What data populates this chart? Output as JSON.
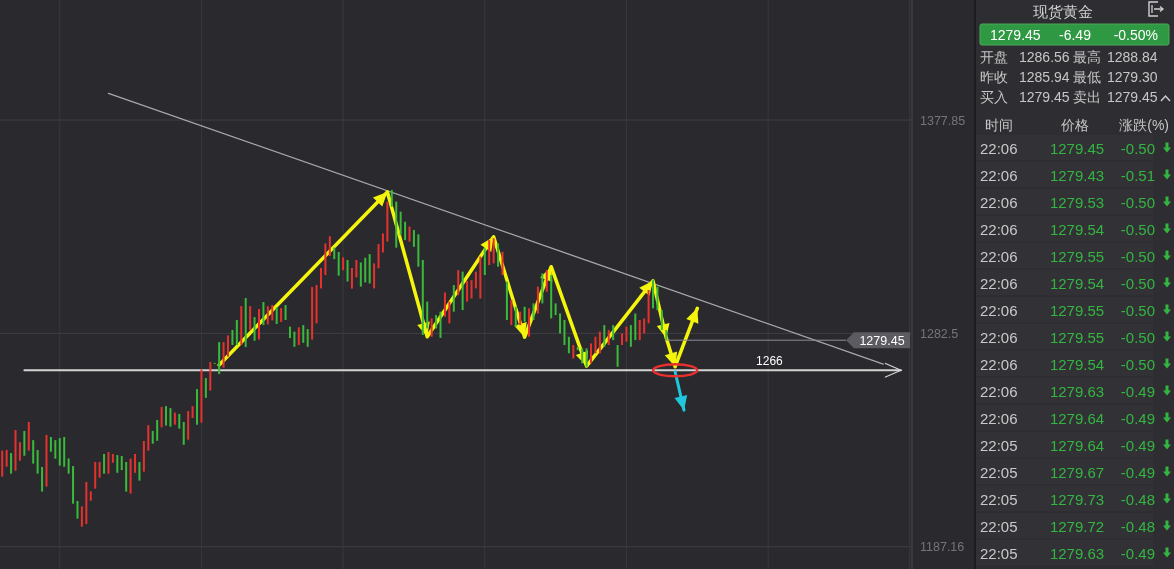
{
  "chart_data": [
    {
      "type": "bar",
      "categories": [
        null,
        null,
        null,
        null,
        null,
        null,
        null,
        null,
        null,
        null,
        null,
        null,
        null,
        null,
        null,
        null,
        null,
        null,
        null,
        null,
        null,
        null,
        null,
        null,
        null,
        null,
        null,
        null,
        null,
        null,
        null,
        null,
        null,
        null,
        null,
        null,
        null,
        null,
        null,
        null,
        null,
        null,
        null,
        null,
        null,
        null,
        null,
        null,
        null,
        null,
        null,
        null,
        null,
        null,
        null,
        null,
        null,
        null,
        null,
        null,
        null,
        null,
        null,
        null,
        null,
        null,
        null,
        null,
        null,
        null,
        null,
        null,
        null,
        null,
        null,
        null,
        null,
        null,
        null,
        null,
        null,
        null,
        null,
        null,
        null,
        null,
        null,
        null,
        null,
        null,
        null,
        null,
        null,
        null,
        null,
        null,
        null,
        null,
        null,
        null,
        null,
        null,
        null,
        null,
        null,
        null,
        null,
        null,
        null,
        null,
        null,
        null,
        null,
        null,
        null,
        null,
        null,
        null,
        null,
        null,
        null,
        null,
        null,
        null,
        null,
        null,
        null,
        null,
        null,
        null,
        null,
        null,
        null,
        null,
        null,
        null,
        null,
        null,
        null,
        null,
        null,
        null,
        null,
        null,
        null,
        null,
        null,
        null,
        null,
        null,
        null,
        null,
        null,
        null,
        null,
        null,
        null,
        null,
        null,
        null,
        null,
        null,
        null,
        null,
        null,
        null,
        null,
        null,
        null,
        null,
        null,
        null,
        null,
        null,
        null,
        null,
        null,
        null,
        null,
        null,
        null,
        null,
        null,
        null,
        null,
        null,
        null,
        null,
        null,
        null,
        null,
        null,
        null,
        null,
        null,
        null,
        null,
        null,
        null,
        null,
        null,
        null,
        null,
        null,
        null,
        null
      ],
      "base": [
        1218.5,
        1222.9,
        1219.8,
        1221.1,
        1225.6,
        1227.8,
        1230.1,
        1224.3,
        1219.8,
        1211.8,
        1214.0,
        1229.6,
        1226.5,
        1223.4,
        1222.9,
        1219.8,
        1206.4,
        1199.7,
        1196.1,
        1197.3,
        1207.7,
        1213.1,
        1218.0,
        1219.8,
        1219.8,
        1224.7,
        1220.2,
        1221.4,
        1211.8,
        1210.9,
        1220.2,
        1216.7,
        1220.7,
        1230.1,
        1233.2,
        1234.5,
        1240.5,
        1241.3,
        1240.8,
        1241.7,
        1239.9,
        1232.7,
        1235.0,
        1244.7,
        1241.7,
        1242.6,
        1253.7,
        1256.9,
        1269.0,
        1264.3,
        1267.2,
        1272.1,
        1277.3,
        1277.3,
        1277.4,
        1276.4,
        1284.0,
        1279.2,
        1279.8,
        1286.2,
        1286.5,
        1288.3,
        1286.7,
        1287.6,
        1288.5,
        1280.4,
        1276.5,
        1277.3,
        1278.3,
        1276.5,
        1279.7,
        1287.0,
        1302.6,
        1308.6,
        1317.1,
        1315.7,
        1308.3,
        1310.7,
        1305.7,
        1302.5,
        1307.5,
        1303.4,
        1305.3,
        1304.8,
        1302.6,
        1311.6,
        1318.7,
        1323.5,
        1339.1,
        1320.8,
        1326.4,
        1324.2,
        1323.5,
        1321.2,
        1312.3,
        1281.8,
        1284.7,
        1281.0,
        1284.7,
        1280.5,
        1290.0,
        1287.0,
        1292.2,
        1299.6,
        1292.9,
        1296.7,
        1298.1,
        1302.6,
        1298.1,
        1308.6,
        1313.0,
        1313.8,
        1312.3,
        1308.6,
        1288.5,
        1286.2,
        1285.5,
        1286.2,
        1287.7,
        1281.0,
        1288.5,
        1291.4,
        1295.9,
        1301.1,
        1289.2,
        1290.7,
        1282.5,
        1277.3,
        1273.6,
        1271.3,
        1275.0,
        1269.1,
        1267.6,
        1269.1,
        1273.6,
        1273.6,
        1276.5,
        1277.3,
        1279.5,
        1267.6,
        1277.3,
        1278.8,
        1276.5,
        1279.5,
        1279.5,
        1282.5,
        1287.0,
        1293.7,
        1292.9,
        1284.0,
        1279.5,
        null,
        null,
        null,
        null,
        null,
        null,
        null,
        null,
        null,
        null,
        null,
        null,
        null,
        null,
        null,
        null,
        null,
        null,
        null,
        null,
        null,
        null,
        null,
        null,
        null,
        null,
        null,
        null,
        null,
        null,
        null,
        null,
        null,
        null,
        null,
        null,
        null,
        null,
        null,
        null,
        null,
        null,
        null,
        null,
        null,
        null,
        null,
        null,
        null,
        null,
        null,
        null,
        null,
        null,
        null
      ],
      "values": [
        11.6,
        7.5,
        9.2,
        18.2,
        8.3,
        11.1,
        12.8,
        10.5,
        10.6,
        11.0,
        23.1,
        6.6,
        8.3,
        12.3,
        13.3,
        6.8,
        16.8,
        7.9,
        9.1,
        18.8,
        4.2,
        11.9,
        7.0,
        8.8,
        9.7,
        3.9,
        7.9,
        6.3,
        13.2,
        15.6,
        8.4,
        8.3,
        13.7,
        11.4,
        5.7,
        9.3,
        9.1,
        8.7,
        8.3,
        5.4,
        6.6,
        10.2,
        12.8,
        5.3,
        15.9,
        23.8,
        8.8,
        12.8,
        0.3,
        14.3,
        11.4,
        9.5,
        6.7,
        11.2,
        17.3,
        21.9,
        10.7,
        10.6,
        13.6,
        10.3,
        8.2,
        6.9,
        7.4,
        6.2,
        6.7,
        5.1,
        6.8,
        7.9,
        7.9,
        7.9,
        23.5,
        17.1,
        9.1,
        14.1,
        8.8,
        5.2,
        10.6,
        5.8,
        9.6,
        9.2,
        7.8,
        10.8,
        11.0,
        13.1,
        11.2,
        10.8,
        8.5,
        17.9,
        7.5,
        20.6,
        10.5,
        8.2,
        6.7,
        7.5,
        14.5,
        33.5,
        12.0,
        8.2,
        6.0,
        11.7,
        10.8,
        9.7,
        11.9,
        11.2,
        17.2,
        9.2,
        8.2,
        7.5,
        18.7,
        11.9,
        11.2,
        11.2,
        10.4,
        10.4,
        17.1,
        11.2,
        8.9,
        6.0,
        6.7,
        12.7,
        7.4,
        12.0,
        13.4,
        9.7,
        19.4,
        5.2,
        8.9,
        11.2,
        7.4,
        6.0,
        1.5,
        6.7,
        8.2,
        8.9,
        7.4,
        9.7,
        9.7,
        6.7,
        6.7,
        9.7,
        5.2,
        6.7,
        9.7,
        11.9,
        9.0,
        6.7,
        14.9,
        12.6,
        10.5,
        8.9,
        4.5,
        null,
        null,
        null,
        null,
        null,
        null,
        null,
        null,
        null,
        null,
        null,
        null,
        null,
        null,
        null,
        null,
        null,
        null,
        null,
        null,
        null,
        null,
        null,
        null,
        null,
        null,
        null,
        null,
        null,
        null,
        null,
        null,
        null,
        null,
        null,
        null,
        null,
        null,
        null,
        null,
        null,
        null,
        null,
        null,
        null,
        null,
        null,
        null,
        null,
        null,
        null,
        null,
        null,
        null,
        null
      ],
      "colors": [
        "#e5322f",
        "#e5322f",
        "#3ab93a",
        "#e5322f",
        "#e5322f",
        "#3ab93a",
        "#e5322f",
        "#3ab93a",
        "#3ab93a",
        "#3ab93a",
        "#e5322f",
        "#3ab93a",
        "#3ab93a",
        "#3ab93a",
        "#3ab93a",
        "#3ab93a",
        "#3ab93a",
        "#3ab93a",
        "#e5322f",
        "#e5322f",
        "#e5322f",
        "#e5322f",
        "#e5322f",
        "#3ab93a",
        "#e5322f",
        "#e5322f",
        "#3ab93a",
        "#3ab93a",
        "#3ab93a",
        "#e5322f",
        "#e5322f",
        "#3ab93a",
        "#e5322f",
        "#e5322f",
        "#3ab93a",
        "#3ab93a",
        "#e5322f",
        "#3ab93a",
        "#3ab93a",
        "#e5322f",
        "#3ab93a",
        "#3ab93a",
        "#e5322f",
        "#e5322f",
        "#3ab93a",
        "#e5322f",
        "#3ab93a",
        "#e5322f",
        "#3ab93a",
        "#3ab93a",
        "#e5322f",
        "#e5322f",
        "#3ab93a",
        "#3ab93a",
        "#e5322f",
        "#3ab93a",
        "#e5322f",
        "#3ab93a",
        "#e5322f",
        "#3ab93a",
        "#e5322f",
        "#e5322f",
        "#3ab93a",
        "#e5322f",
        "#3ab93a",
        "#3ab93a",
        "#3ab93a",
        "#e5322f",
        "#3ab93a",
        "#3ab93a",
        "#e5322f",
        "#e5322f",
        "#e5322f",
        "#e5322f",
        "#e5322f",
        "#3ab93a",
        "#3ab93a",
        "#e5322f",
        "#3ab93a",
        "#e5322f",
        "#e5322f",
        "#3ab93a",
        "#3ab93a",
        "#3ab93a",
        "#e5322f",
        "#e5322f",
        "#e5322f",
        "#e5322f",
        "#3ab93a",
        "#3ab93a",
        "#3ab93a",
        "#3ab93a",
        "#e5322f",
        "#3ab93a",
        "#3ab93a",
        "#3ab93a",
        "#3ab93a",
        "#e5322f",
        "#3ab93a",
        "#3ab93a",
        "#e5322f",
        "#e5322f",
        "#3ab93a",
        "#e5322f",
        "#3ab93a",
        "#e5322f",
        "#e5322f",
        "#e5322f",
        "#e5322f",
        "#3ab93a",
        "#e5322f",
        "#e5322f",
        "#3ab93a",
        "#e5322f",
        "#3ab93a",
        "#e5322f",
        "#3ab93a",
        "#e5322f",
        "#3ab93a",
        "#e5322f",
        "#3ab93a",
        "#e5322f",
        "#3ab93a",
        "#e5322f",
        "#3ab93a",
        "#3ab93a",
        "#3ab93a",
        "#3ab93a",
        "#3ab93a",
        "#e5322f",
        "#3ab93a",
        "#3ab93a",
        "#3ab93a",
        "#e5322f",
        "#e5322f",
        "#e5322f",
        "#3ab93a",
        "#e5322f",
        "#3ab93a",
        "#3ab93a",
        "#e5322f",
        "#e5322f",
        "#3ab93a",
        "#3ab93a",
        "#e5322f",
        "#e5322f",
        "#e5322f",
        "#3ab93a",
        "#3ab93a",
        "#3ab93a",
        "#3ab93a",
        null,
        null,
        null,
        null,
        null,
        null,
        null,
        null,
        null,
        null,
        null,
        null,
        null,
        null,
        null,
        null,
        null,
        null,
        null,
        null,
        null,
        null,
        null,
        null,
        null,
        null,
        null,
        null,
        null,
        null,
        null,
        null,
        null,
        null,
        null,
        null,
        null,
        null,
        null,
        null,
        null,
        null,
        null,
        null,
        null,
        null,
        null,
        null,
        null,
        null,
        null,
        null,
        null,
        null,
        null
      ],
      "series": [
        {
          "type": "line",
          "name": "1266",
          "color": "#d4d4d4",
          "values": [
            null,
            null,
            null,
            null,
            null,
            1266,
            null,
            null,
            null,
            null,
            null,
            null,
            null,
            null,
            null,
            null,
            null,
            null,
            null,
            null,
            null,
            null,
            null,
            null,
            null,
            null,
            null,
            null,
            null,
            null,
            null,
            null,
            null,
            null,
            null,
            null,
            null,
            null,
            null,
            null,
            null,
            null,
            null,
            null,
            null,
            null,
            null,
            null,
            null,
            null,
            null,
            null,
            null,
            null,
            null,
            null,
            null,
            null,
            null,
            null,
            null,
            null,
            null,
            null,
            null,
            null,
            null,
            null,
            null,
            null,
            null,
            null,
            null,
            null,
            null,
            null,
            null,
            null,
            null,
            null,
            null,
            null,
            null,
            null,
            null,
            null,
            null,
            null,
            null,
            null,
            null,
            null,
            null,
            null,
            null,
            null,
            null,
            null,
            null,
            null,
            null,
            null,
            null,
            null,
            null,
            null,
            null,
            null,
            null,
            null,
            null,
            null,
            null,
            null,
            null,
            null,
            null,
            null,
            null,
            null,
            null,
            null,
            null,
            null,
            null,
            null,
            null,
            null,
            null,
            null,
            null,
            null,
            null,
            null,
            null,
            null,
            null,
            null,
            null,
            null,
            null,
            null,
            null,
            null,
            null,
            null,
            null,
            null,
            null,
            null,
            null,
            null,
            null,
            null,
            null,
            null,
            null,
            null,
            null,
            null,
            null,
            null,
            null,
            null,
            null,
            null,
            null,
            null,
            null,
            null,
            null,
            null,
            null,
            null,
            null,
            null,
            null,
            null,
            null,
            null,
            null,
            null,
            null,
            null,
            null,
            null,
            null,
            null,
            null,
            null,
            null,
            null,
            null,
            null,
            null,
            null,
            null,
            null,
            null,
            null,
            null,
            null,
            null,
            1266,
            null,
            null
          ]
        },
        {
          "type": "line",
          "color": "#a9a9ad",
          "values": [
            null,
            null,
            null,
            null,
            null,
            null,
            null,
            null,
            null,
            null,
            null,
            null,
            null,
            null,
            null,
            null,
            null,
            null,
            null,
            null,
            null,
            null,
            null,
            null,
            1389.8,
            null,
            null,
            null,
            null,
            null,
            null,
            null,
            null,
            null,
            null,
            null,
            null,
            null,
            null,
            null,
            null,
            null,
            null,
            null,
            null,
            null,
            null,
            null,
            null,
            null,
            null,
            null,
            null,
            null,
            null,
            null,
            null,
            null,
            null,
            null,
            null,
            null,
            null,
            null,
            null,
            null,
            null,
            null,
            null,
            null,
            null,
            null,
            null,
            null,
            null,
            null,
            null,
            null,
            null,
            null,
            null,
            null,
            null,
            null,
            null,
            null,
            null,
            null,
            null,
            null,
            null,
            null,
            null,
            null,
            null,
            null,
            null,
            null,
            null,
            null,
            null,
            null,
            null,
            null,
            null,
            null,
            null,
            null,
            null,
            null,
            null,
            null,
            null,
            null,
            null,
            null,
            null,
            null,
            null,
            null,
            null,
            null,
            null,
            null,
            null,
            null,
            null,
            null,
            null,
            null,
            null,
            null,
            null,
            null,
            null,
            null,
            null,
            null,
            null,
            null,
            null,
            null,
            null,
            null,
            null,
            null,
            null,
            null,
            null,
            null,
            null,
            null,
            null,
            null,
            null,
            null,
            null,
            null,
            null,
            null,
            null,
            null,
            null,
            null,
            null,
            null,
            null,
            null,
            null,
            null,
            null,
            null,
            null,
            null,
            null,
            null,
            null,
            null,
            null,
            null,
            null,
            null,
            null,
            null,
            null,
            null,
            null,
            null,
            null,
            null,
            null,
            null,
            null,
            null,
            null,
            null,
            null,
            null,
            null,
            1268.8,
            null,
            null,
            null,
            null,
            null,
            null
          ]
        },
        {
          "type": "line",
          "color": "#f4f40c",
          "values": [
            null,
            null,
            null,
            null,
            null,
            null,
            null,
            null,
            null,
            null,
            null,
            null,
            null,
            null,
            null,
            null,
            null,
            null,
            null,
            null,
            null,
            null,
            null,
            null,
            null,
            null,
            null,
            null,
            null,
            null,
            null,
            null,
            null,
            null,
            null,
            null,
            null,
            null,
            null,
            null,
            null,
            null,
            null,
            null,
            null,
            null,
            null,
            null,
            null,
            1268.4,
            null,
            null,
            null,
            null,
            null,
            null,
            null,
            null,
            null,
            null,
            null,
            null,
            null,
            null,
            null,
            null,
            null,
            null,
            null,
            null,
            null,
            null,
            null,
            null,
            null,
            null,
            null,
            null,
            null,
            null,
            null,
            null,
            null,
            null,
            null,
            null,
            null,
            1345.7,
            null,
            null,
            null,
            null,
            null,
            null,
            null,
            null,
            1281.0,
            null,
            null,
            null,
            null,
            null,
            null,
            null,
            null,
            null,
            null,
            null,
            null,
            null,
            null,
            1325.7,
            null,
            null,
            null,
            null,
            null,
            null,
            1280.8,
            null,
            null,
            null,
            null,
            null,
            1312.3,
            null,
            null,
            null,
            null,
            null,
            null,
            null,
            1267.9,
            null,
            null,
            null,
            null,
            null,
            null,
            null,
            null,
            null,
            null,
            null,
            null,
            null,
            null,
            1306.0,
            null,
            null,
            1280.4,
            null,
            1267.6,
            null,
            null,
            null,
            null,
            1293.7,
            null,
            null,
            null,
            null,
            null,
            null,
            null,
            null,
            null,
            null,
            null,
            null,
            null,
            null,
            null,
            null,
            null,
            null,
            null,
            null,
            null,
            null,
            null,
            null,
            null,
            null,
            null,
            null,
            null,
            null,
            null,
            null,
            null,
            null,
            null,
            null,
            null,
            null,
            null,
            null,
            null,
            null,
            null,
            null,
            null,
            null,
            null,
            null
          ]
        },
        {
          "type": "line",
          "color": "#1fc6dc",
          "values": [
            null,
            null,
            null,
            null,
            null,
            null,
            null,
            null,
            null,
            null,
            null,
            null,
            null,
            null,
            null,
            null,
            null,
            null,
            null,
            null,
            null,
            null,
            null,
            null,
            null,
            null,
            null,
            null,
            null,
            null,
            null,
            null,
            null,
            null,
            null,
            null,
            null,
            null,
            null,
            null,
            null,
            null,
            null,
            null,
            null,
            null,
            null,
            null,
            null,
            null,
            null,
            null,
            null,
            null,
            null,
            null,
            null,
            null,
            null,
            null,
            null,
            null,
            null,
            null,
            null,
            null,
            null,
            null,
            null,
            null,
            null,
            null,
            null,
            null,
            null,
            null,
            null,
            null,
            null,
            null,
            null,
            null,
            null,
            null,
            null,
            null,
            null,
            null,
            null,
            null,
            null,
            null,
            null,
            null,
            null,
            null,
            null,
            null,
            null,
            null,
            null,
            null,
            null,
            null,
            null,
            null,
            null,
            null,
            null,
            null,
            null,
            null,
            null,
            null,
            null,
            null,
            null,
            null,
            null,
            null,
            null,
            null,
            null,
            null,
            null,
            null,
            null,
            null,
            null,
            null,
            null,
            null,
            null,
            null,
            null,
            null,
            null,
            null,
            null,
            null,
            null,
            null,
            null,
            null,
            null,
            null,
            null,
            null,
            null,
            null,
            null,
            null,
            1265.3,
            null,
            1248.2,
            null,
            null,
            null,
            null,
            null,
            null,
            null,
            null,
            null,
            null,
            null,
            null,
            null,
            null,
            null,
            null,
            null,
            null,
            null,
            null,
            null,
            null,
            null,
            null,
            null,
            null,
            null,
            null,
            null,
            null,
            null,
            null,
            null,
            null,
            null,
            null,
            null,
            null,
            null,
            null,
            null,
            null,
            null,
            null,
            null,
            null,
            null,
            null,
            null,
            null,
            null
          ]
        }
      ],
      "ref_lines": [
        {
          "axis": "y",
          "value": 1279.45,
          "label": "1279.45",
          "color": "#8c8c92"
        }
      ],
      "ylim": [
        1177.2,
        1431.5
      ],
      "yticks": [
        1187.16,
        1282.5,
        1377.85
      ],
      "grid": true,
      "tick_labels": "y"
    },
    {
      "type": "other",
      "title": "现货黄金",
      "annotations": [
        "1279.45",
        "-6.49",
        "-0.50%",
        "开盘",
        "1286.56",
        "最高",
        "1288.84",
        "昨收",
        "1285.94",
        "最低",
        "1279.30",
        "买入",
        "1279.45",
        "卖出",
        "1279.45",
        "时间",
        "价格",
        "涨跌(%)",
        "22:06 1279.45 -0.50",
        "22:06 1279.43 -0.51",
        "22:06 1279.53 -0.50",
        "22:06 1279.54 -0.50",
        "22:06 1279.55 -0.50",
        "22:06 1279.54 -0.50",
        "22:06 1279.55 -0.50",
        "22:06 1279.55 -0.50",
        "22:06 1279.54 -0.50",
        "22:06 1279.63 -0.49",
        "22:06 1279.64 -0.49",
        "22:05 1279.64 -0.49",
        "22:05 1279.67 -0.49",
        "22:05 1279.73 -0.48",
        "22:05 1279.72 -0.48",
        "22:05 1279.63 -0.49"
      ]
    }
  ]
}
